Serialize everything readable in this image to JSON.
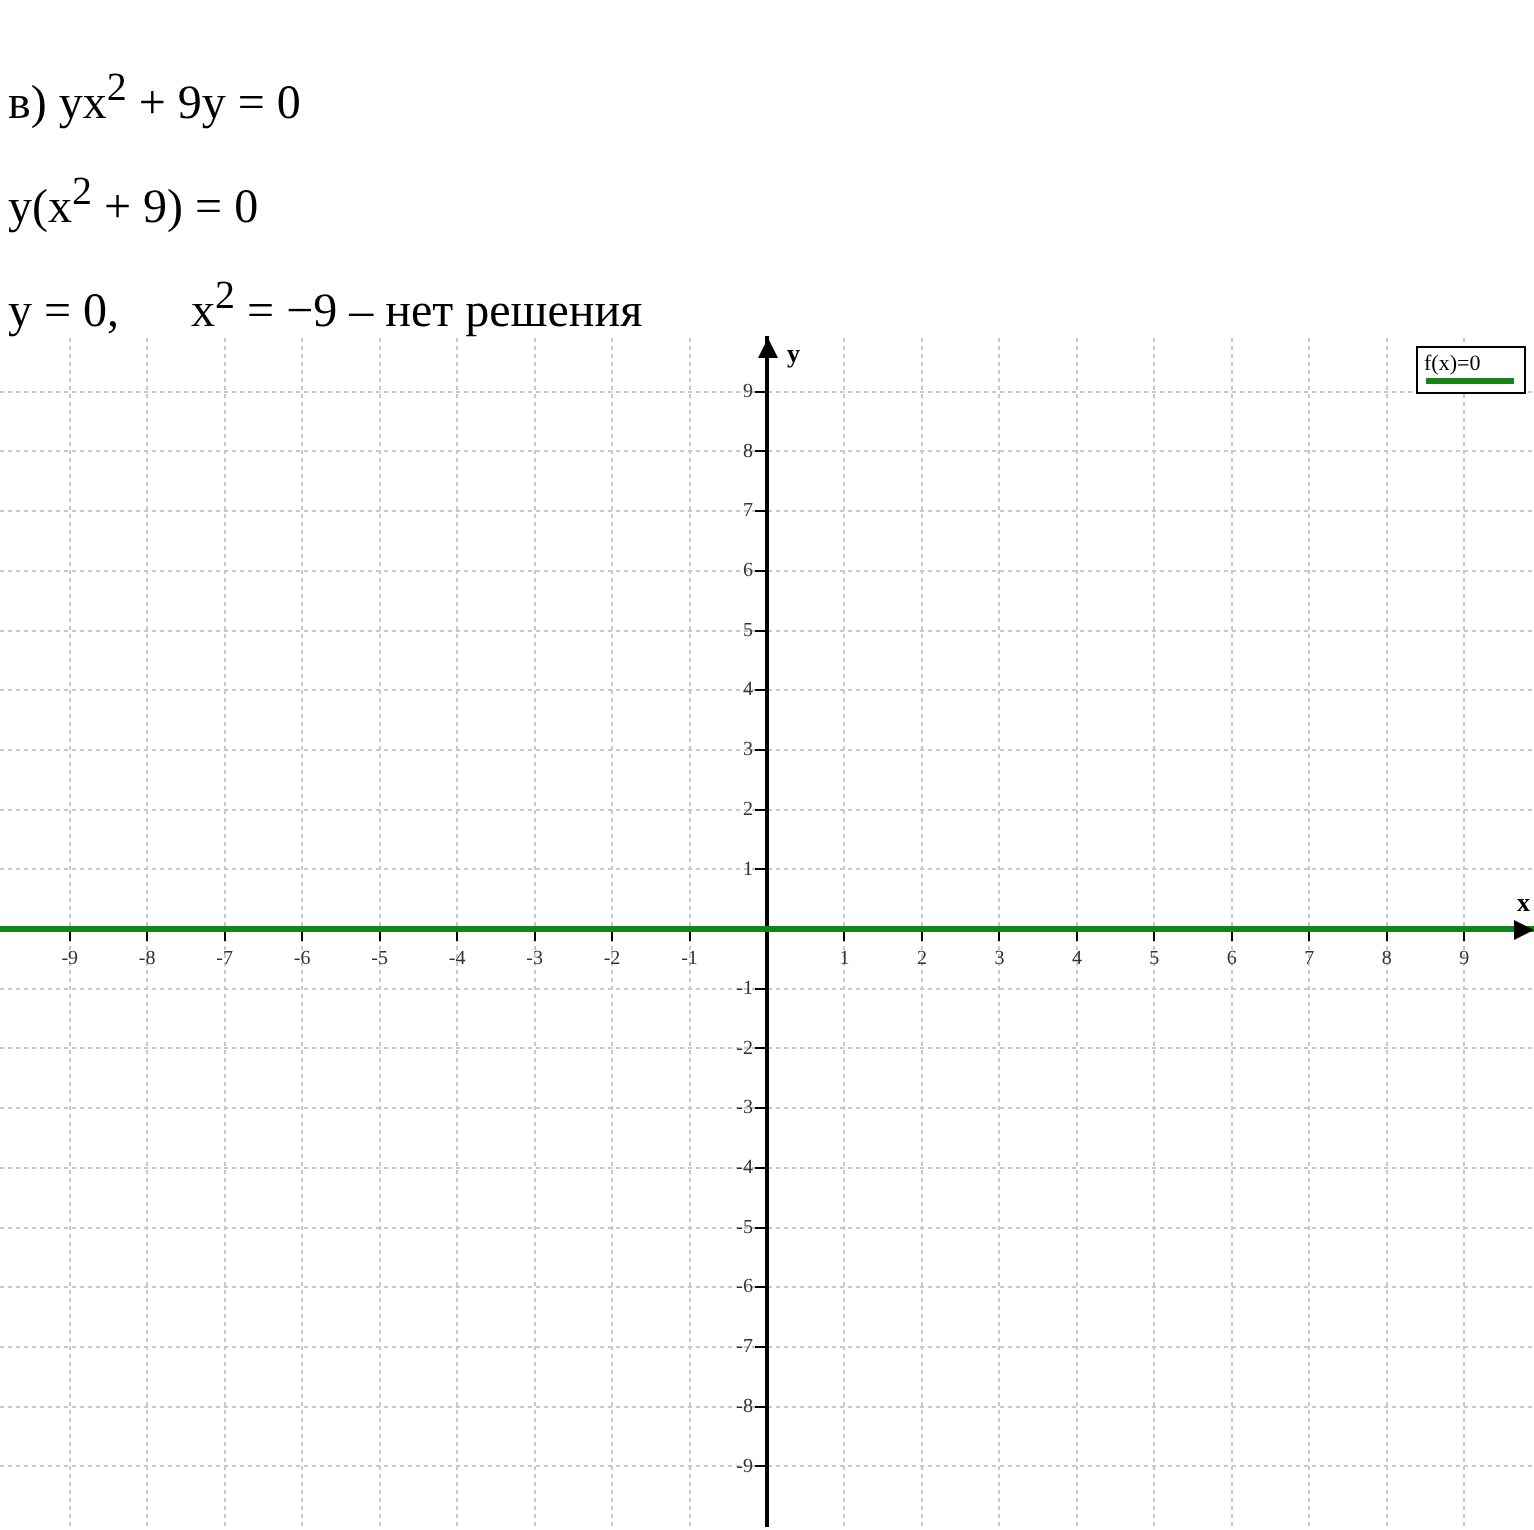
{
  "chart_data": {
    "type": "line",
    "annotations": [
      "в) yx$^{2}$ + 9y = 0",
      "y(x$^{2}$ + 9) = 0",
      "y = 0,      x$^{2}$ = −9 – нет решения"
    ],
    "xlabel": "x",
    "ylabel": "y",
    "x": [
      -9.9,
      9.9
    ],
    "series": [
      {
        "name": "f(x)=0",
        "color": "#12841a",
        "values": [
          0,
          0
        ]
      }
    ],
    "xlim": [
      -9.9,
      9.9
    ],
    "ylim": [
      -10,
      9.9
    ],
    "xticks": [
      -9,
      -8,
      -7,
      -6,
      -5,
      -4,
      -3,
      -2,
      -1,
      1,
      2,
      3,
      4,
      5,
      6,
      7,
      8,
      9
    ],
    "yticks": [
      -9,
      -8,
      -7,
      -6,
      -5,
      -4,
      -3,
      -2,
      -1,
      1,
      2,
      3,
      4,
      5,
      6,
      7,
      8,
      9
    ],
    "grid": true,
    "legend": "top right",
    "marker": "none",
    "line_style": "solid"
  }
}
